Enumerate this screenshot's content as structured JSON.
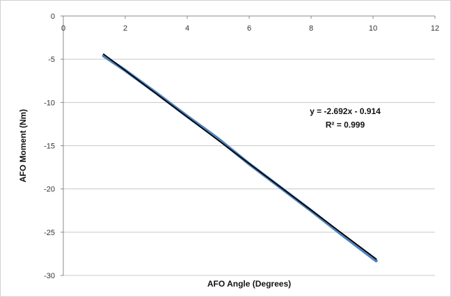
{
  "chart_data": {
    "type": "line",
    "title": "",
    "xlabel": "AFO Angle (Degrees)",
    "ylabel": "AFO Moment (Nm)",
    "xlim": [
      0,
      12
    ],
    "ylim": [
      -30,
      0
    ],
    "x_ticks": [
      0,
      2,
      4,
      6,
      8,
      10,
      12
    ],
    "y_ticks": [
      0,
      -5,
      -10,
      -15,
      -20,
      -25,
      -30
    ],
    "x_tick_labels": [
      "0",
      "2",
      "4",
      "6",
      "8",
      "10",
      "12"
    ],
    "y_tick_labels": [
      "0",
      "-5",
      "-10",
      "-15",
      "-20",
      "-25",
      "-30"
    ],
    "grid": true,
    "series": [
      {
        "color": "#4f81bd",
        "x": [
          1.3,
          2.0,
          3.0,
          4.0,
          5.0,
          6.0,
          7.0,
          8.0,
          9.0,
          10.1
        ],
        "y": [
          -4.6,
          -6.3,
          -8.9,
          -11.6,
          -14.2,
          -17.1,
          -19.8,
          -22.5,
          -25.3,
          -28.3
        ]
      },
      {
        "color": "#000000",
        "x": [
          1.3,
          10.1
        ],
        "y": [
          -4.41,
          -28.1
        ]
      }
    ],
    "annotations": [
      {
        "text": "y = -2.692x - 0.914",
        "x": 9.1,
        "y": -11.0
      },
      {
        "text": "R² = 0.999",
        "x": 9.1,
        "y": -12.6
      }
    ]
  }
}
